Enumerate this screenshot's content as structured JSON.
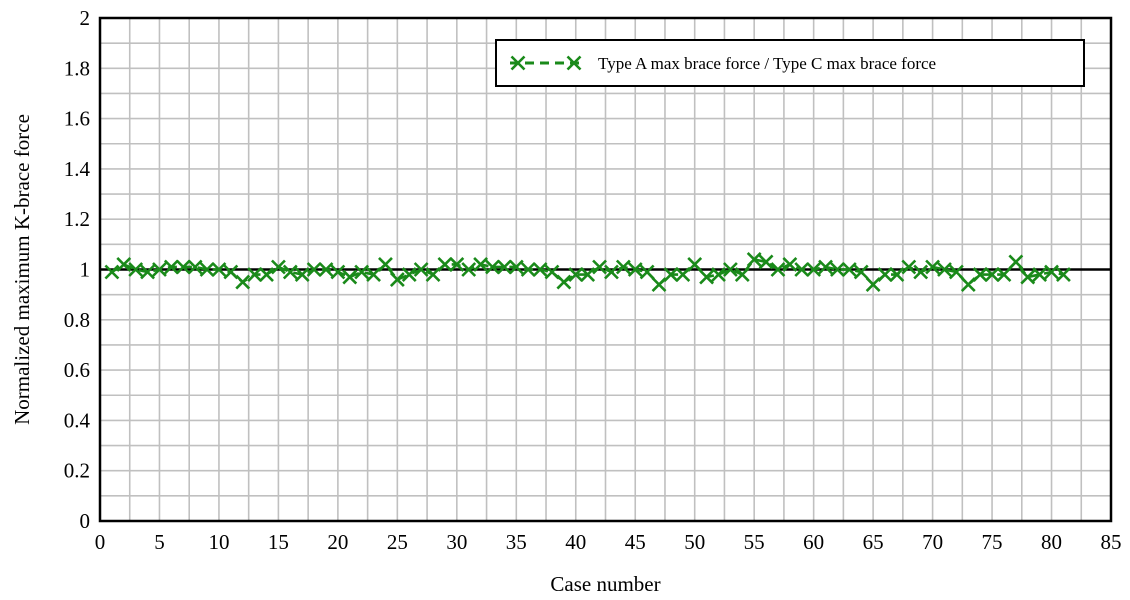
{
  "chart_data": {
    "type": "line",
    "xlabel": "Case number",
    "ylabel": "Normalized maximum K-brace force",
    "xlim": [
      0,
      85
    ],
    "ylim": [
      0,
      2
    ],
    "xticks": [
      "0",
      "5",
      "10",
      "15",
      "20",
      "25",
      "30",
      "35",
      "40",
      "45",
      "50",
      "55",
      "60",
      "65",
      "70",
      "75",
      "80",
      "85"
    ],
    "yticks": [
      "0",
      "0.2",
      "0.4",
      "0.6",
      "0.8",
      "1",
      "1.2",
      "1.4",
      "1.6",
      "1.8",
      "2"
    ],
    "x_minor_step": 2.5,
    "y_minor_step": 0.1,
    "grid": true,
    "legend_position": "top-right",
    "reference_line": 1,
    "series": [
      {
        "name": "Type A max brace force / Type C max brace force",
        "color": "#1a8a1a",
        "line_style": "dashed",
        "marker": "x",
        "x": [
          1,
          2,
          3,
          4,
          5,
          6,
          7,
          8,
          9,
          10,
          11,
          12,
          13,
          14,
          15,
          16,
          17,
          18,
          19,
          20,
          21,
          22,
          23,
          24,
          25,
          26,
          27,
          28,
          29,
          30,
          31,
          32,
          33,
          34,
          35,
          36,
          37,
          38,
          39,
          40,
          41,
          42,
          43,
          44,
          45,
          46,
          47,
          48,
          49,
          50,
          51,
          52,
          53,
          54,
          55,
          56,
          57,
          58,
          59,
          60,
          61,
          62,
          63,
          64,
          65,
          66,
          67,
          68,
          69,
          70,
          71,
          72,
          73,
          74,
          75,
          76,
          77,
          78,
          79,
          80,
          81
        ],
        "values": [
          0.99,
          1.02,
          1.0,
          0.99,
          1.0,
          1.01,
          1.01,
          1.01,
          1.0,
          1.0,
          0.99,
          0.95,
          0.98,
          0.98,
          1.01,
          0.99,
          0.98,
          1.0,
          1.0,
          0.99,
          0.97,
          0.99,
          0.98,
          1.02,
          0.96,
          0.98,
          1.0,
          0.98,
          1.02,
          1.02,
          1.0,
          1.02,
          1.01,
          1.01,
          1.01,
          1.0,
          1.0,
          0.99,
          0.95,
          0.98,
          0.98,
          1.01,
          0.99,
          1.01,
          1.0,
          0.99,
          0.94,
          0.98,
          0.98,
          1.02,
          0.97,
          0.98,
          1.0,
          0.98,
          1.04,
          1.03,
          1.0,
          1.02,
          1.0,
          1.0,
          1.01,
          1.0,
          1.0,
          0.99,
          0.94,
          0.98,
          0.98,
          1.01,
          0.99,
          1.01,
          1.0,
          0.99,
          0.94,
          0.98,
          0.98,
          0.98,
          1.03,
          0.97,
          0.98,
          0.99,
          0.98
        ]
      }
    ]
  }
}
